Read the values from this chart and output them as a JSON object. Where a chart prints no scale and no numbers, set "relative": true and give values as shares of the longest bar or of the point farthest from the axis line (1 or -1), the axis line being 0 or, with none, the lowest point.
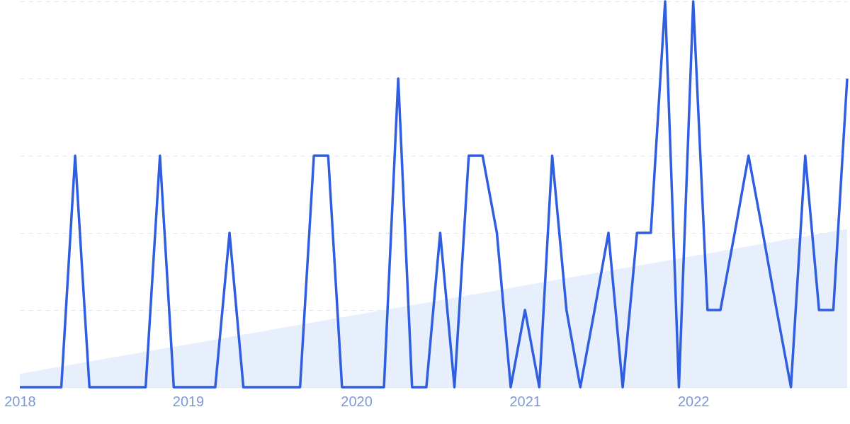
{
  "chart_data": {
    "type": "line",
    "relative": true,
    "grid": "y",
    "line_style": "solid",
    "x": [
      "2018-01",
      "2018-02",
      "2018-03",
      "2018-04",
      "2018-05",
      "2018-06",
      "2018-07",
      "2018-08",
      "2018-09",
      "2018-10",
      "2018-11",
      "2018-12",
      "2019-01",
      "2019-02",
      "2019-03",
      "2019-04",
      "2019-05",
      "2019-06",
      "2019-07",
      "2019-08",
      "2019-09",
      "2019-10",
      "2019-11",
      "2019-12",
      "2020-01",
      "2020-02",
      "2020-03",
      "2020-04",
      "2020-05",
      "2020-06",
      "2020-07",
      "2020-08",
      "2020-09",
      "2020-10",
      "2020-11",
      "2020-12",
      "2021-01",
      "2021-02",
      "2021-03",
      "2021-04",
      "2021-05",
      "2021-06",
      "2021-07",
      "2021-08",
      "2021-09",
      "2021-10",
      "2021-11",
      "2021-12",
      "2022-01",
      "2022-02",
      "2022-03",
      "2022-04",
      "2022-05",
      "2022-06",
      "2022-07",
      "2022-08",
      "2022-09",
      "2022-10",
      "2022-11",
      "2022-12"
    ],
    "xlim": [
      "2018-01",
      "2022-12"
    ],
    "xticks": [
      {
        "value": "2018-01",
        "label": "2018"
      },
      {
        "value": "2019-01",
        "label": "2019"
      },
      {
        "value": "2020-01",
        "label": "2020"
      },
      {
        "value": "2021-01",
        "label": "2021"
      },
      {
        "value": "2022-01",
        "label": "2022"
      }
    ],
    "series": [
      {
        "type": "area",
        "color": "#e6effb",
        "x": [
          "2018-01",
          "2022-12"
        ],
        "values": [
          0.035,
          0.41
        ]
      },
      {
        "type": "line",
        "color": "#2f5ee0",
        "values": [
          0,
          0,
          0,
          0,
          0.6,
          0,
          0,
          0,
          0,
          0,
          0.6,
          0,
          0,
          0,
          0,
          0.4,
          0,
          0,
          0,
          0,
          0,
          0.6,
          0.6,
          0,
          0,
          0,
          0,
          0.8,
          0,
          0,
          0.4,
          0,
          0.6,
          0.6,
          0.4,
          0,
          0.2,
          0,
          0.6,
          0.2,
          0,
          0.2,
          0.4,
          0,
          0.4,
          0.4,
          1,
          0,
          1,
          0.2,
          0.2,
          0.4,
          0.6,
          0.4,
          0.2,
          0,
          0.6,
          0.2,
          0.2,
          0.8
        ]
      }
    ]
  }
}
